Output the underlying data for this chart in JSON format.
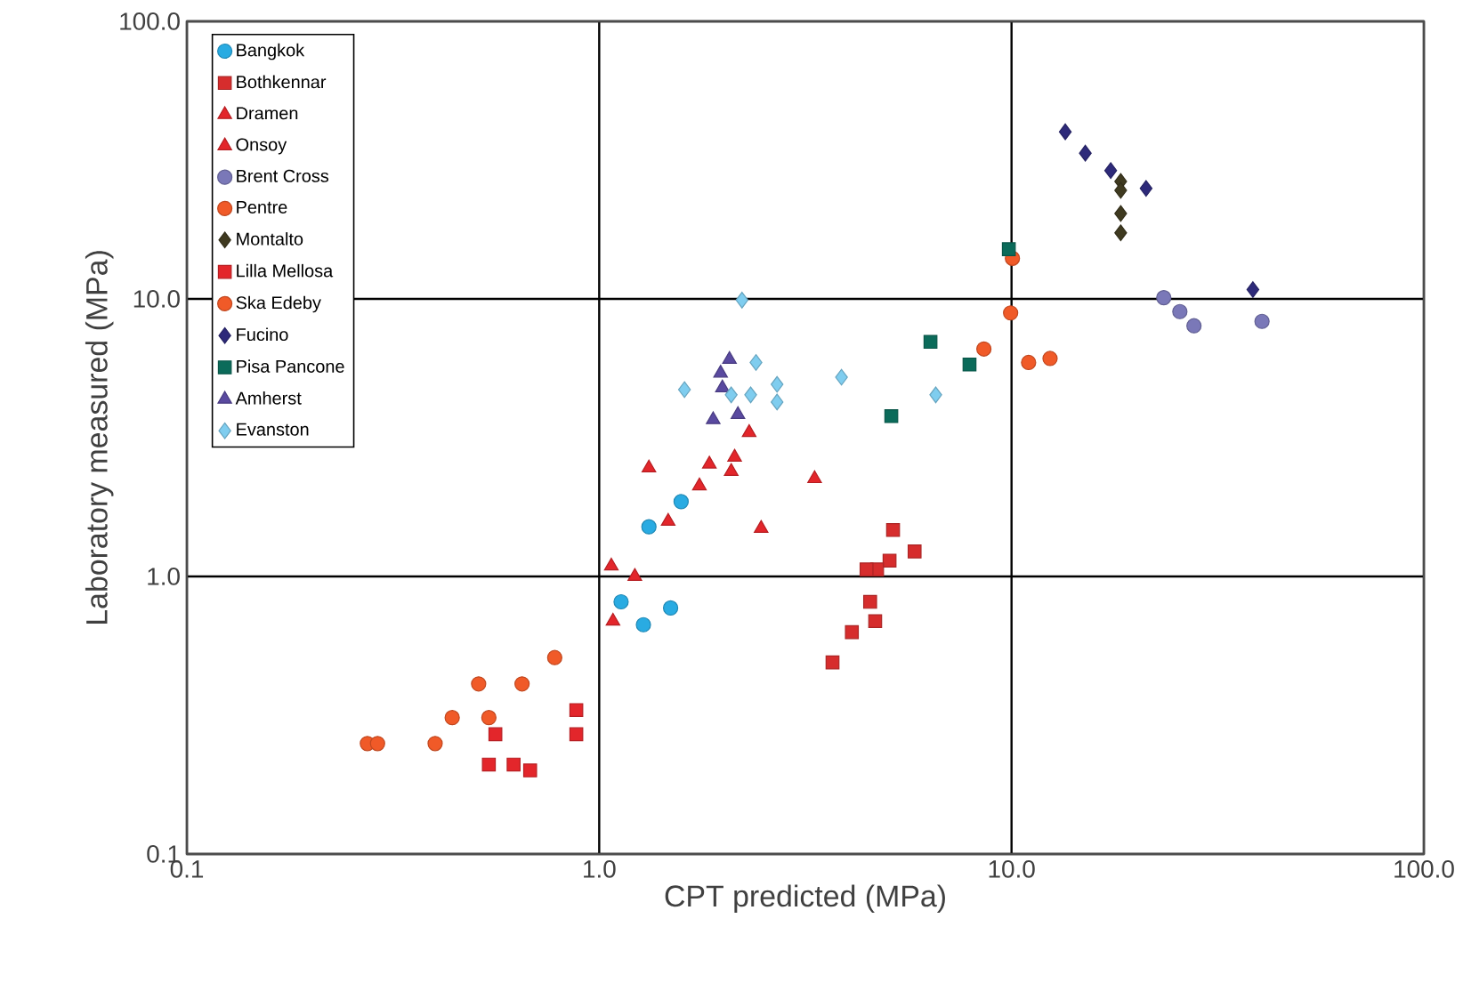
{
  "chart_data": {
    "type": "scatter",
    "xlabel": "CPT predicted (MPa)",
    "ylabel": "Laboratory measured (MPa)",
    "log": "xy",
    "grid": true,
    "legend": "top left",
    "xlim": [
      0.1,
      100
    ],
    "ylim": [
      0.1,
      100
    ],
    "xticks": [
      0.1,
      {
        "value": 1,
        "label": "1.0"
      },
      {
        "value": 10,
        "label": "10.0"
      },
      {
        "value": 100,
        "label": "100.0"
      }
    ],
    "yticks": [
      0.1,
      {
        "value": 1,
        "label": "1.0"
      },
      {
        "value": 10,
        "label": "10.0"
      },
      {
        "value": 100,
        "label": "100.0"
      }
    ],
    "series": [
      {
        "name": "Bangkok",
        "color": "#29abe2",
        "marker": "circle",
        "x": [
          1.13,
          1.28,
          1.49,
          1.32,
          1.58
        ],
        "values": [
          0.81,
          0.67,
          0.77,
          1.51,
          1.86
        ]
      },
      {
        "name": "Bothkennar",
        "color": "#d62d2d",
        "marker": "square",
        "x": [
          5.16,
          5.82,
          5.06,
          4.72,
          4.45,
          4.54,
          4.67,
          4.1,
          3.68
        ],
        "values": [
          1.47,
          1.23,
          1.14,
          1.06,
          1.06,
          0.81,
          0.69,
          0.63,
          0.49
        ]
      },
      {
        "name": "Dramen",
        "color": "#e3262b",
        "marker": "triangle",
        "x": [
          1.07,
          1.22,
          1.47,
          1.75,
          2.09,
          2.31
        ],
        "values": [
          1.09,
          1.0,
          1.58,
          2.12,
          2.39,
          3.3
        ]
      },
      {
        "name": "Onsoy",
        "color": "#e3262b",
        "marker": "triangle",
        "x": [
          1.08,
          1.32,
          1.85,
          2.13,
          3.33,
          2.47
        ],
        "values": [
          0.69,
          2.46,
          2.54,
          2.69,
          2.25,
          1.49
        ]
      },
      {
        "name": "Brent Cross",
        "color": "#7a78b8",
        "marker": "circle",
        "x": [
          23.4,
          25.6,
          27.7,
          40.5
        ],
        "values": [
          10.1,
          9.0,
          8.0,
          8.3
        ]
      },
      {
        "name": "Pentre",
        "color": "#f05a28",
        "marker": "circle",
        "x": [
          10.05,
          9.95,
          8.57,
          11.0,
          12.4
        ],
        "values": [
          14.0,
          8.9,
          6.6,
          5.9,
          6.1
        ]
      },
      {
        "name": "Montalto",
        "color": "#3f3a20",
        "marker": "diamond",
        "x": [
          18.4,
          18.4,
          18.4,
          18.4
        ],
        "values": [
          26.5,
          24.6,
          20.3,
          17.3
        ]
      },
      {
        "name": "Lilla Mellosa",
        "color": "#e3262b",
        "marker": "square",
        "x": [
          0.88,
          0.88,
          0.56,
          0.54,
          0.62,
          0.68
        ],
        "values": [
          0.33,
          0.27,
          0.27,
          0.21,
          0.21,
          0.2
        ]
      },
      {
        "name": "Ska Edeby",
        "color": "#f05a28",
        "marker": "circle",
        "x": [
          0.274,
          0.29,
          0.4,
          0.44,
          0.54,
          0.51,
          0.65,
          0.78
        ],
        "values": [
          0.25,
          0.25,
          0.25,
          0.31,
          0.31,
          0.41,
          0.41,
          0.51
        ]
      },
      {
        "name": "Fucino",
        "color": "#2e2a7a",
        "marker": "diamond",
        "x": [
          13.5,
          15.1,
          17.4,
          21.2,
          38.5
        ],
        "values": [
          40,
          33.5,
          29,
          25,
          10.8
        ]
      },
      {
        "name": "Pisa Pancone",
        "color": "#0b6b5a",
        "marker": "square",
        "x": [
          6.36,
          7.91,
          5.11,
          9.85
        ],
        "values": [
          7.0,
          5.8,
          3.78,
          15.1
        ]
      },
      {
        "name": "Amherst",
        "color": "#5a4aa0",
        "marker": "triangle",
        "x": [
          2.07,
          1.97,
          1.99,
          1.89,
          2.17
        ],
        "values": [
          6.05,
          5.4,
          4.78,
          3.67,
          3.83
        ]
      },
      {
        "name": "Evanston",
        "color": "#7fcdef",
        "marker": "diamond",
        "x": [
          2.22,
          1.61,
          2.4,
          2.7,
          2.7,
          2.09,
          2.33,
          3.87,
          6.55
        ],
        "values": [
          9.9,
          4.71,
          5.9,
          4.92,
          4.25,
          4.51,
          4.51,
          5.22,
          4.51
        ]
      }
    ]
  }
}
